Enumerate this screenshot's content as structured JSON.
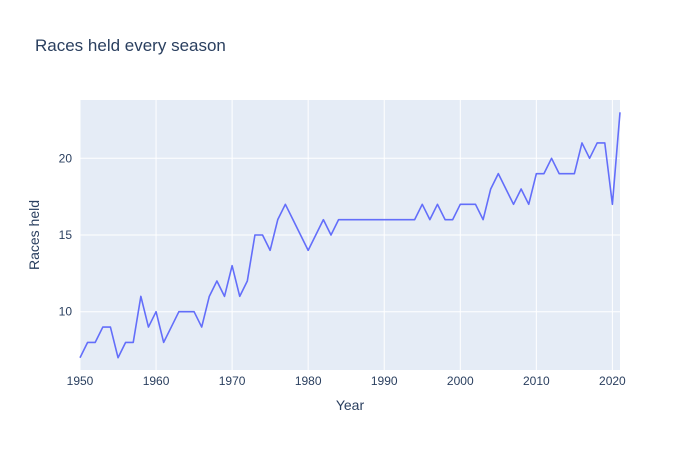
{
  "chart_data": {
    "type": "line",
    "title": "Races held every season",
    "xlabel": "Year",
    "ylabel": "Races held",
    "xlim": [
      1950,
      2021
    ],
    "ylim": [
      6.2,
      23.8
    ],
    "xticks": [
      1950,
      1960,
      1970,
      1980,
      1990,
      2000,
      2010,
      2020
    ],
    "yticks": [
      10,
      15,
      20
    ],
    "grid": true,
    "colors": {
      "line": "#636efa",
      "plot_bg": "#e5ecf6",
      "grid": "#ffffff",
      "text": "#2a3f5f"
    },
    "series": [
      {
        "x": [
          1950,
          1951,
          1952,
          1953,
          1954,
          1955,
          1956,
          1957,
          1958,
          1959,
          1960,
          1961,
          1962,
          1963,
          1964,
          1965,
          1966,
          1967,
          1968,
          1969,
          1970,
          1971,
          1972,
          1973,
          1974,
          1975,
          1976,
          1977,
          1978,
          1979,
          1980,
          1981,
          1982,
          1983,
          1984,
          1985,
          1986,
          1987,
          1988,
          1989,
          1990,
          1991,
          1992,
          1993,
          1994,
          1995,
          1996,
          1997,
          1998,
          1999,
          2000,
          2001,
          2002,
          2003,
          2004,
          2005,
          2006,
          2007,
          2008,
          2009,
          2010,
          2011,
          2012,
          2013,
          2014,
          2015,
          2016,
          2017,
          2018,
          2019,
          2020,
          2021
        ],
        "values": [
          7,
          8,
          8,
          9,
          9,
          7,
          8,
          8,
          11,
          9,
          10,
          8,
          9,
          10,
          10,
          10,
          9,
          11,
          12,
          11,
          13,
          11,
          12,
          15,
          15,
          14,
          16,
          17,
          16,
          15,
          14,
          15,
          16,
          15,
          16,
          16,
          16,
          16,
          16,
          16,
          16,
          16,
          16,
          16,
          16,
          17,
          16,
          17,
          16,
          16,
          17,
          17,
          17,
          16,
          18,
          19,
          18,
          17,
          18,
          17,
          19,
          19,
          20,
          19,
          19,
          19,
          21,
          20,
          21,
          21,
          17,
          23
        ]
      }
    ]
  }
}
